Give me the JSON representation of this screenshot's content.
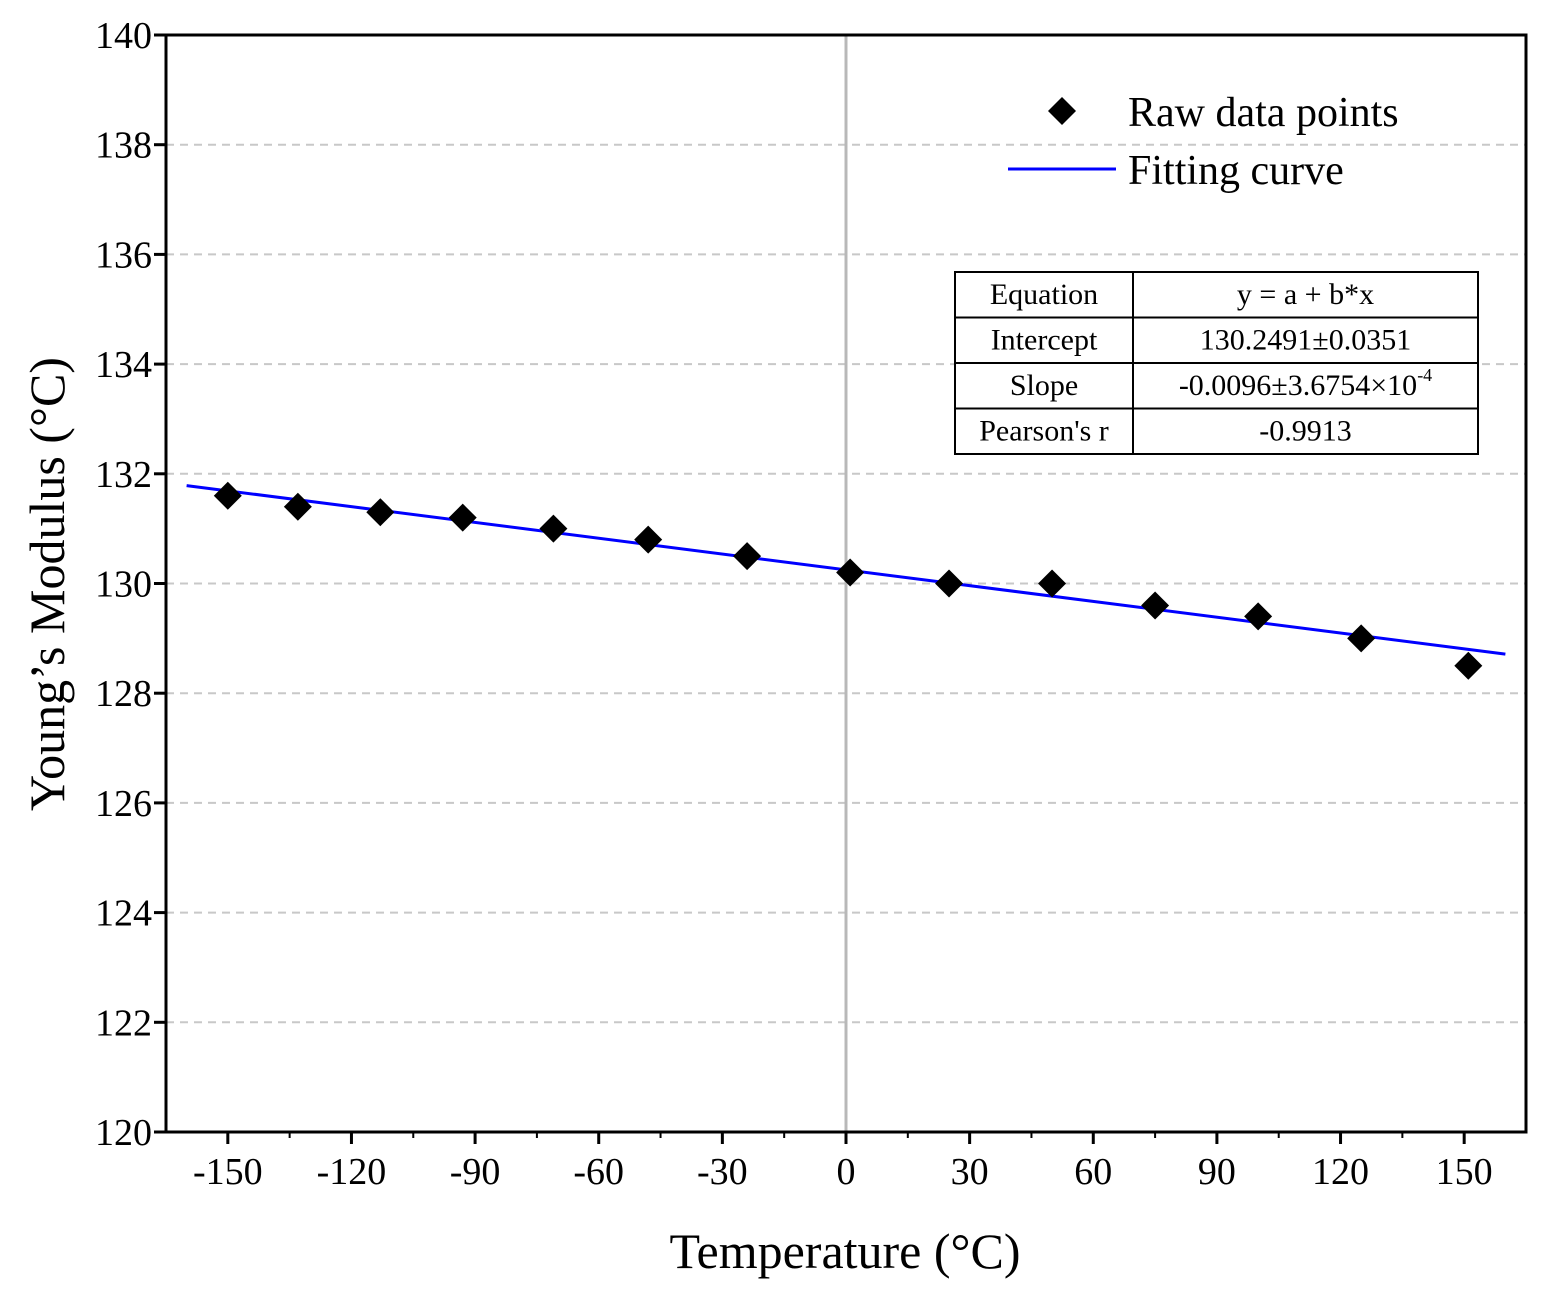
{
  "chart_data": {
    "type": "scatter",
    "title": "",
    "xlabel": "Temperature (°C)",
    "ylabel": "Young’s Modulus (°C)",
    "xlim": [
      -165,
      165
    ],
    "ylim": [
      120,
      140
    ],
    "xticks": [
      -150,
      -120,
      -90,
      -60,
      -30,
      0,
      30,
      60,
      90,
      120,
      150
    ],
    "yticks": [
      120,
      122,
      124,
      126,
      128,
      130,
      132,
      134,
      136,
      138,
      140
    ],
    "grid": "horizontal dashed",
    "zero_line": 0,
    "series": [
      {
        "name": "Raw data points",
        "type": "scatter",
        "marker": "diamond",
        "color": "#000000",
        "x": [
          -150,
          -133,
          -113,
          -93,
          -71,
          -48,
          -24,
          1,
          25,
          50,
          75,
          100,
          125,
          151
        ],
        "y": [
          131.6,
          131.4,
          131.3,
          131.2,
          131.0,
          130.8,
          130.5,
          130.2,
          130.0,
          130.0,
          129.6,
          129.4,
          129.0,
          128.5
        ]
      },
      {
        "name": "Fitting curve",
        "type": "line",
        "color": "#0000ff",
        "x": [
          -160,
          160
        ],
        "intercept": 130.2491,
        "slope": -0.0096
      }
    ],
    "legend": {
      "position": "top-right",
      "items": [
        "Raw data points",
        "Fitting curve"
      ]
    },
    "stats_table": {
      "position": "upper-right",
      "rows": [
        {
          "label": "Equation",
          "value": "y = a + b*x",
          "sup": ""
        },
        {
          "label": "Intercept",
          "value": "130.2491±0.0351",
          "sup": ""
        },
        {
          "label": "Slope",
          "value": "-0.0096±3.6754×10",
          "sup": "-4"
        },
        {
          "label": "Pearson's r",
          "value": "-0.9913",
          "sup": ""
        }
      ]
    }
  }
}
